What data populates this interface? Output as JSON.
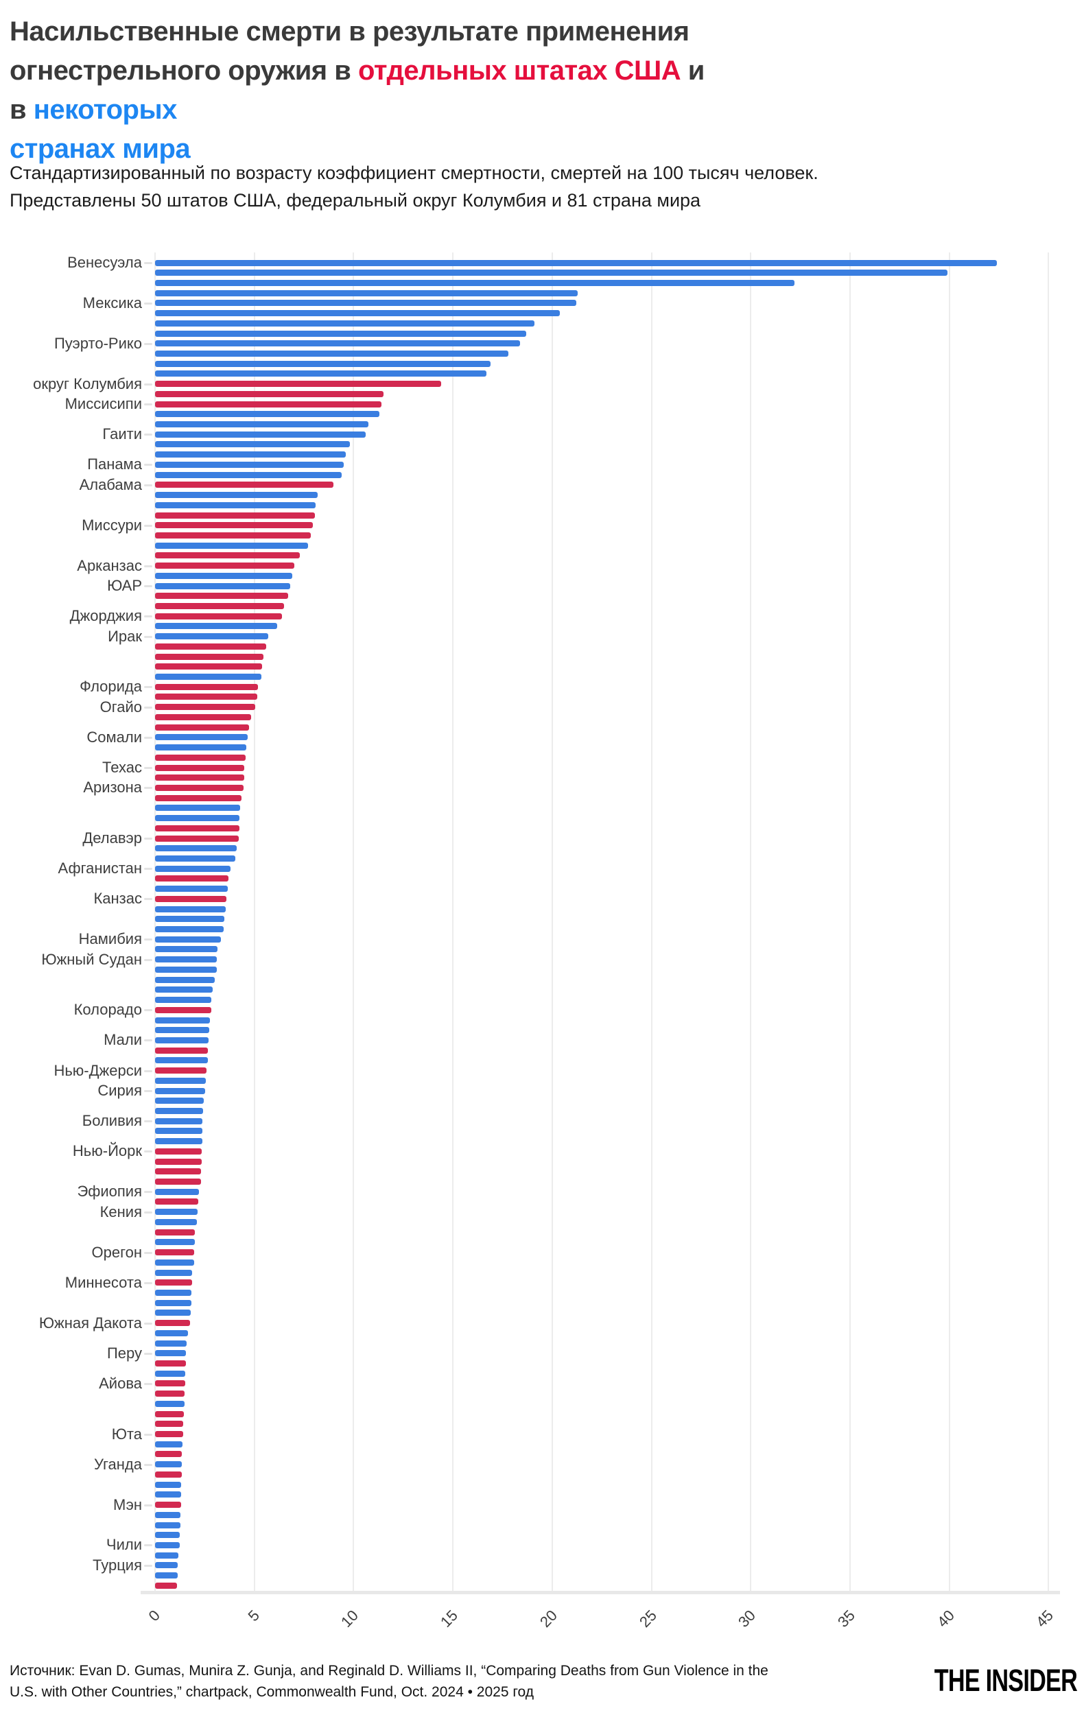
{
  "colors": {
    "title_dark": "#3a3a3a",
    "title_red": "#e50f3d",
    "title_blue": "#1d86f2",
    "bar_state": "#d22950",
    "bar_country": "#3a7ee0"
  },
  "title": {
    "lines": [
      [
        {
          "text": "Насильственные смерти в результате применения",
          "color": "title_dark"
        }
      ],
      [
        {
          "text": "огнестрельного оружия в ",
          "color": "title_dark"
        },
        {
          "text": "отдельных штатах США",
          "color": "title_red"
        },
        {
          "text": " и в ",
          "color": "title_dark"
        },
        {
          "text": "некоторых",
          "color": "title_blue"
        }
      ],
      [
        {
          "text": "странах мира",
          "color": "title_blue"
        }
      ]
    ]
  },
  "subtitle_lines": [
    "Стандартизированный по возрасту коэффициент смертности, смертей на 100 тысяч человек.",
    "Представлены 50 штатов США, федеральный округ Колумбия и 81 страна мира"
  ],
  "footer": {
    "source_lines": [
      "Источник: Evan D. Gumas, Munira Z. Gunja, and Reginald D. Williams II, “Comparing Deaths from Gun Violence in the",
      "U.S. with Other Countries,” chartpack, Commonwealth Fund, Oct. 2024 • 2025 год"
    ],
    "logo": "THE INSIDER"
  },
  "chart_data": {
    "type": "bar",
    "orientation": "horizontal",
    "xlabel": "",
    "ylabel": "",
    "xlim": [
      0,
      45
    ],
    "xticks": [
      0,
      5,
      10,
      15,
      20,
      25,
      30,
      35,
      40,
      45
    ],
    "grid": true,
    "legend": "none",
    "types_legend": {
      "s": "us-state",
      "c": "country"
    },
    "bars": [
      [
        "Венесуэла",
        42.4,
        "c"
      ],
      [
        "",
        39.9,
        "c"
      ],
      [
        "",
        32.2,
        "c"
      ],
      [
        "",
        21.3,
        "c"
      ],
      [
        "Мексика",
        21.2,
        "c"
      ],
      [
        "",
        20.4,
        "c"
      ],
      [
        "",
        19.1,
        "c"
      ],
      [
        "",
        18.7,
        "c"
      ],
      [
        "Пуэрто-Рико",
        18.4,
        "c"
      ],
      [
        "",
        17.8,
        "c"
      ],
      [
        "",
        16.9,
        "c"
      ],
      [
        "",
        16.7,
        "c"
      ],
      [
        "округ Колумбия",
        14.4,
        "s"
      ],
      [
        "",
        11.5,
        "s"
      ],
      [
        "Миссисипи",
        11.4,
        "s"
      ],
      [
        "",
        11.3,
        "c"
      ],
      [
        "",
        10.75,
        "c"
      ],
      [
        "Гаити",
        10.6,
        "c"
      ],
      [
        "",
        9.8,
        "c"
      ],
      [
        "",
        9.6,
        "c"
      ],
      [
        "Панама",
        9.5,
        "c"
      ],
      [
        "",
        9.4,
        "c"
      ],
      [
        "Алабама",
        9.0,
        "s"
      ],
      [
        "",
        8.2,
        "c"
      ],
      [
        "",
        8.1,
        "c"
      ],
      [
        "",
        8.05,
        "s"
      ],
      [
        "Миссури",
        7.95,
        "s"
      ],
      [
        "",
        7.85,
        "s"
      ],
      [
        "",
        7.7,
        "c"
      ],
      [
        "",
        7.3,
        "s"
      ],
      [
        "Арканзас",
        7.0,
        "s"
      ],
      [
        "",
        6.9,
        "c"
      ],
      [
        "ЮАР",
        6.8,
        "c"
      ],
      [
        "",
        6.7,
        "s"
      ],
      [
        "",
        6.5,
        "s"
      ],
      [
        "Джорджия",
        6.4,
        "s"
      ],
      [
        "",
        6.15,
        "c"
      ],
      [
        "Ирак",
        5.7,
        "c"
      ],
      [
        "",
        5.6,
        "s"
      ],
      [
        "",
        5.45,
        "s"
      ],
      [
        "",
        5.4,
        "s"
      ],
      [
        "",
        5.35,
        "c"
      ],
      [
        "Флорида",
        5.2,
        "s"
      ],
      [
        "",
        5.15,
        "s"
      ],
      [
        "Огайо",
        5.05,
        "s"
      ],
      [
        "",
        4.85,
        "s"
      ],
      [
        "",
        4.75,
        "s"
      ],
      [
        "Сомали",
        4.65,
        "c"
      ],
      [
        "",
        4.6,
        "c"
      ],
      [
        "",
        4.55,
        "s"
      ],
      [
        "Техас",
        4.5,
        "s"
      ],
      [
        "",
        4.5,
        "s"
      ],
      [
        "Аризона",
        4.45,
        "s"
      ],
      [
        "",
        4.35,
        "s"
      ],
      [
        "",
        4.3,
        "c"
      ],
      [
        "",
        4.25,
        "c"
      ],
      [
        "",
        4.25,
        "s"
      ],
      [
        "Делавэр",
        4.2,
        "s"
      ],
      [
        "",
        4.1,
        "c"
      ],
      [
        "",
        4.05,
        "c"
      ],
      [
        "Афганистан",
        3.8,
        "c"
      ],
      [
        "",
        3.7,
        "s"
      ],
      [
        "",
        3.68,
        "c"
      ],
      [
        "Канзас",
        3.6,
        "s"
      ],
      [
        "",
        3.55,
        "c"
      ],
      [
        "",
        3.5,
        "c"
      ],
      [
        "",
        3.45,
        "c"
      ],
      [
        "Намибия",
        3.3,
        "c"
      ],
      [
        "",
        3.15,
        "c"
      ],
      [
        "Южный Судан",
        3.12,
        "c"
      ],
      [
        "",
        3.1,
        "c"
      ],
      [
        "",
        3.0,
        "c"
      ],
      [
        "",
        2.9,
        "c"
      ],
      [
        "",
        2.85,
        "c"
      ],
      [
        "Колорадо",
        2.82,
        "s"
      ],
      [
        "",
        2.75,
        "c"
      ],
      [
        "",
        2.72,
        "c"
      ],
      [
        "Мали",
        2.7,
        "c"
      ],
      [
        "",
        2.65,
        "s"
      ],
      [
        "",
        2.65,
        "c"
      ],
      [
        "Нью-Джерси",
        2.6,
        "s"
      ],
      [
        "",
        2.55,
        "c"
      ],
      [
        "Сирия",
        2.52,
        "c"
      ],
      [
        "",
        2.45,
        "c"
      ],
      [
        "",
        2.42,
        "c"
      ],
      [
        "Боливия",
        2.4,
        "c"
      ],
      [
        "",
        2.38,
        "c"
      ],
      [
        "",
        2.37,
        "c"
      ],
      [
        "Нью-Йорк",
        2.36,
        "s"
      ],
      [
        "",
        2.34,
        "s"
      ],
      [
        "",
        2.31,
        "s"
      ],
      [
        "",
        2.3,
        "s"
      ],
      [
        "Эфиопия",
        2.2,
        "c"
      ],
      [
        "",
        2.17,
        "s"
      ],
      [
        "Кения",
        2.13,
        "c"
      ],
      [
        "",
        2.12,
        "c"
      ],
      [
        "",
        2.0,
        "s"
      ],
      [
        "",
        1.99,
        "c"
      ],
      [
        "Орегон",
        1.98,
        "s"
      ],
      [
        "",
        1.96,
        "c"
      ],
      [
        "",
        1.87,
        "c"
      ],
      [
        "Миннесота",
        1.85,
        "s"
      ],
      [
        "",
        1.84,
        "c"
      ],
      [
        "",
        1.83,
        "c"
      ],
      [
        "",
        1.8,
        "c"
      ],
      [
        "Южная Дакота",
        1.76,
        "s"
      ],
      [
        "",
        1.65,
        "c"
      ],
      [
        "",
        1.58,
        "c"
      ],
      [
        "Перу",
        1.55,
        "c"
      ],
      [
        "",
        1.54,
        "s"
      ],
      [
        "",
        1.52,
        "c"
      ],
      [
        "Айова",
        1.51,
        "s"
      ],
      [
        "",
        1.49,
        "s"
      ],
      [
        "",
        1.48,
        "c"
      ],
      [
        "",
        1.45,
        "s"
      ],
      [
        "",
        1.42,
        "s"
      ],
      [
        "Юта",
        1.4,
        "s"
      ],
      [
        "",
        1.38,
        "c"
      ],
      [
        "",
        1.36,
        "s"
      ],
      [
        "Уганда",
        1.35,
        "c"
      ],
      [
        "",
        1.34,
        "s"
      ],
      [
        "",
        1.32,
        "c"
      ],
      [
        "",
        1.31,
        "c"
      ],
      [
        "Мэн",
        1.3,
        "s"
      ],
      [
        "",
        1.29,
        "c"
      ],
      [
        "",
        1.28,
        "c"
      ],
      [
        "",
        1.26,
        "c"
      ],
      [
        "Чили",
        1.25,
        "c"
      ],
      [
        "",
        1.19,
        "c"
      ],
      [
        "Турция",
        1.15,
        "c"
      ],
      [
        "",
        1.13,
        "c"
      ],
      [
        "",
        1.12,
        "s"
      ]
    ]
  }
}
